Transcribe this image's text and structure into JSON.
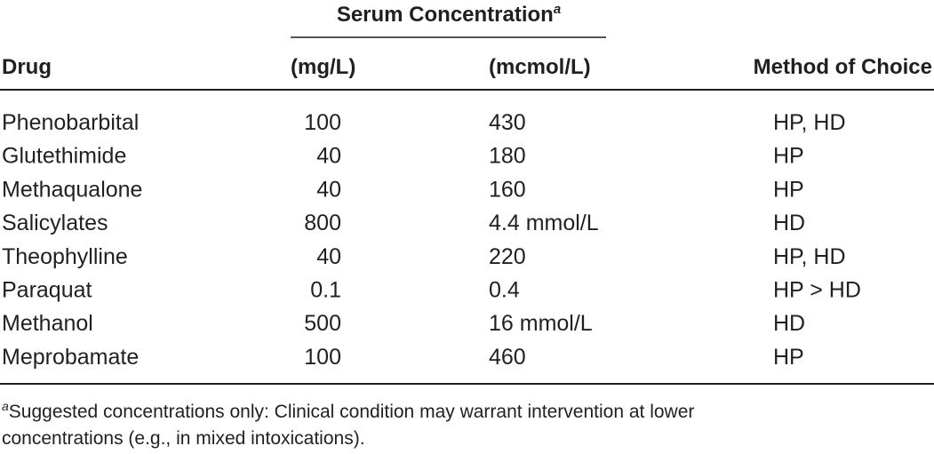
{
  "table": {
    "spanner": {
      "text": "Serum Concentration",
      "note": "a"
    },
    "columns": [
      "Drug",
      "(mg/L)",
      "(mcmol/L)",
      "Method of Choice"
    ],
    "rows": [
      [
        "Phenobarbital",
        "100",
        "430",
        "HP, HD"
      ],
      [
        "Glutethimide",
        "40",
        "180",
        "HP"
      ],
      [
        "Methaqualone",
        "40",
        "160",
        "HP"
      ],
      [
        "Salicylates",
        "800",
        "4.4 mmol/L",
        "HD"
      ],
      [
        "Theophylline",
        "40",
        "220",
        "HP, HD"
      ],
      [
        "Paraquat",
        "0.1",
        "0.4",
        "HP > HD"
      ],
      [
        "Methanol",
        "500",
        "16 mmol/L",
        "HD"
      ],
      [
        "Meprobamate",
        "100",
        "460",
        "HP"
      ]
    ]
  },
  "footnote": {
    "marker": "a",
    "lines": [
      "Suggested concentrations only: Clinical condition may warrant intervention at lower",
      "concentrations (e.g., in mixed intoxications)."
    ]
  }
}
